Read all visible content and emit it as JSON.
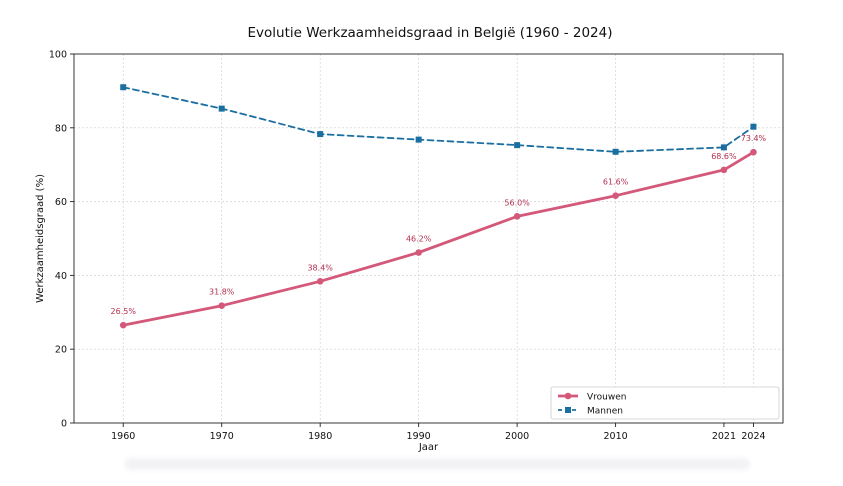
{
  "chart_data": {
    "type": "line",
    "title": "Evolutie Werkzaamheidsgraad in België (1960 - 2024)",
    "xlabel": "Jaar",
    "ylabel": "Werkzaamheidsgraad (%)",
    "x": [
      1960,
      1970,
      1980,
      1990,
      2000,
      2010,
      2021,
      2024
    ],
    "x_tick_labels": [
      "1960",
      "1970",
      "1980",
      "1990",
      "2000",
      "2010",
      "2021",
      "2024"
    ],
    "ylim": [
      0,
      100
    ],
    "y_ticks": [
      0,
      20,
      40,
      60,
      80,
      100
    ],
    "y_tick_labels": [
      "0",
      "20",
      "40",
      "60",
      "80",
      "100"
    ],
    "grid": true,
    "legend_position": "bottom-right",
    "series": [
      {
        "name": "Vrouwen",
        "values": [
          26.5,
          31.8,
          38.4,
          46.2,
          56.0,
          61.6,
          68.6,
          73.4
        ],
        "data_labels": [
          "26.5%",
          "31.8%",
          "38.4%",
          "46.2%",
          "56.0%",
          "61.6%",
          "68.6%",
          "73.4%"
        ],
        "color": "#d4587a",
        "style": "solid",
        "marker": "circle"
      },
      {
        "name": "Mannen",
        "values": [
          91.0,
          85.2,
          78.3,
          76.8,
          75.3,
          73.5,
          74.7,
          80.3
        ],
        "color": "#1a6fa0",
        "style": "dashed",
        "marker": "square"
      }
    ]
  }
}
